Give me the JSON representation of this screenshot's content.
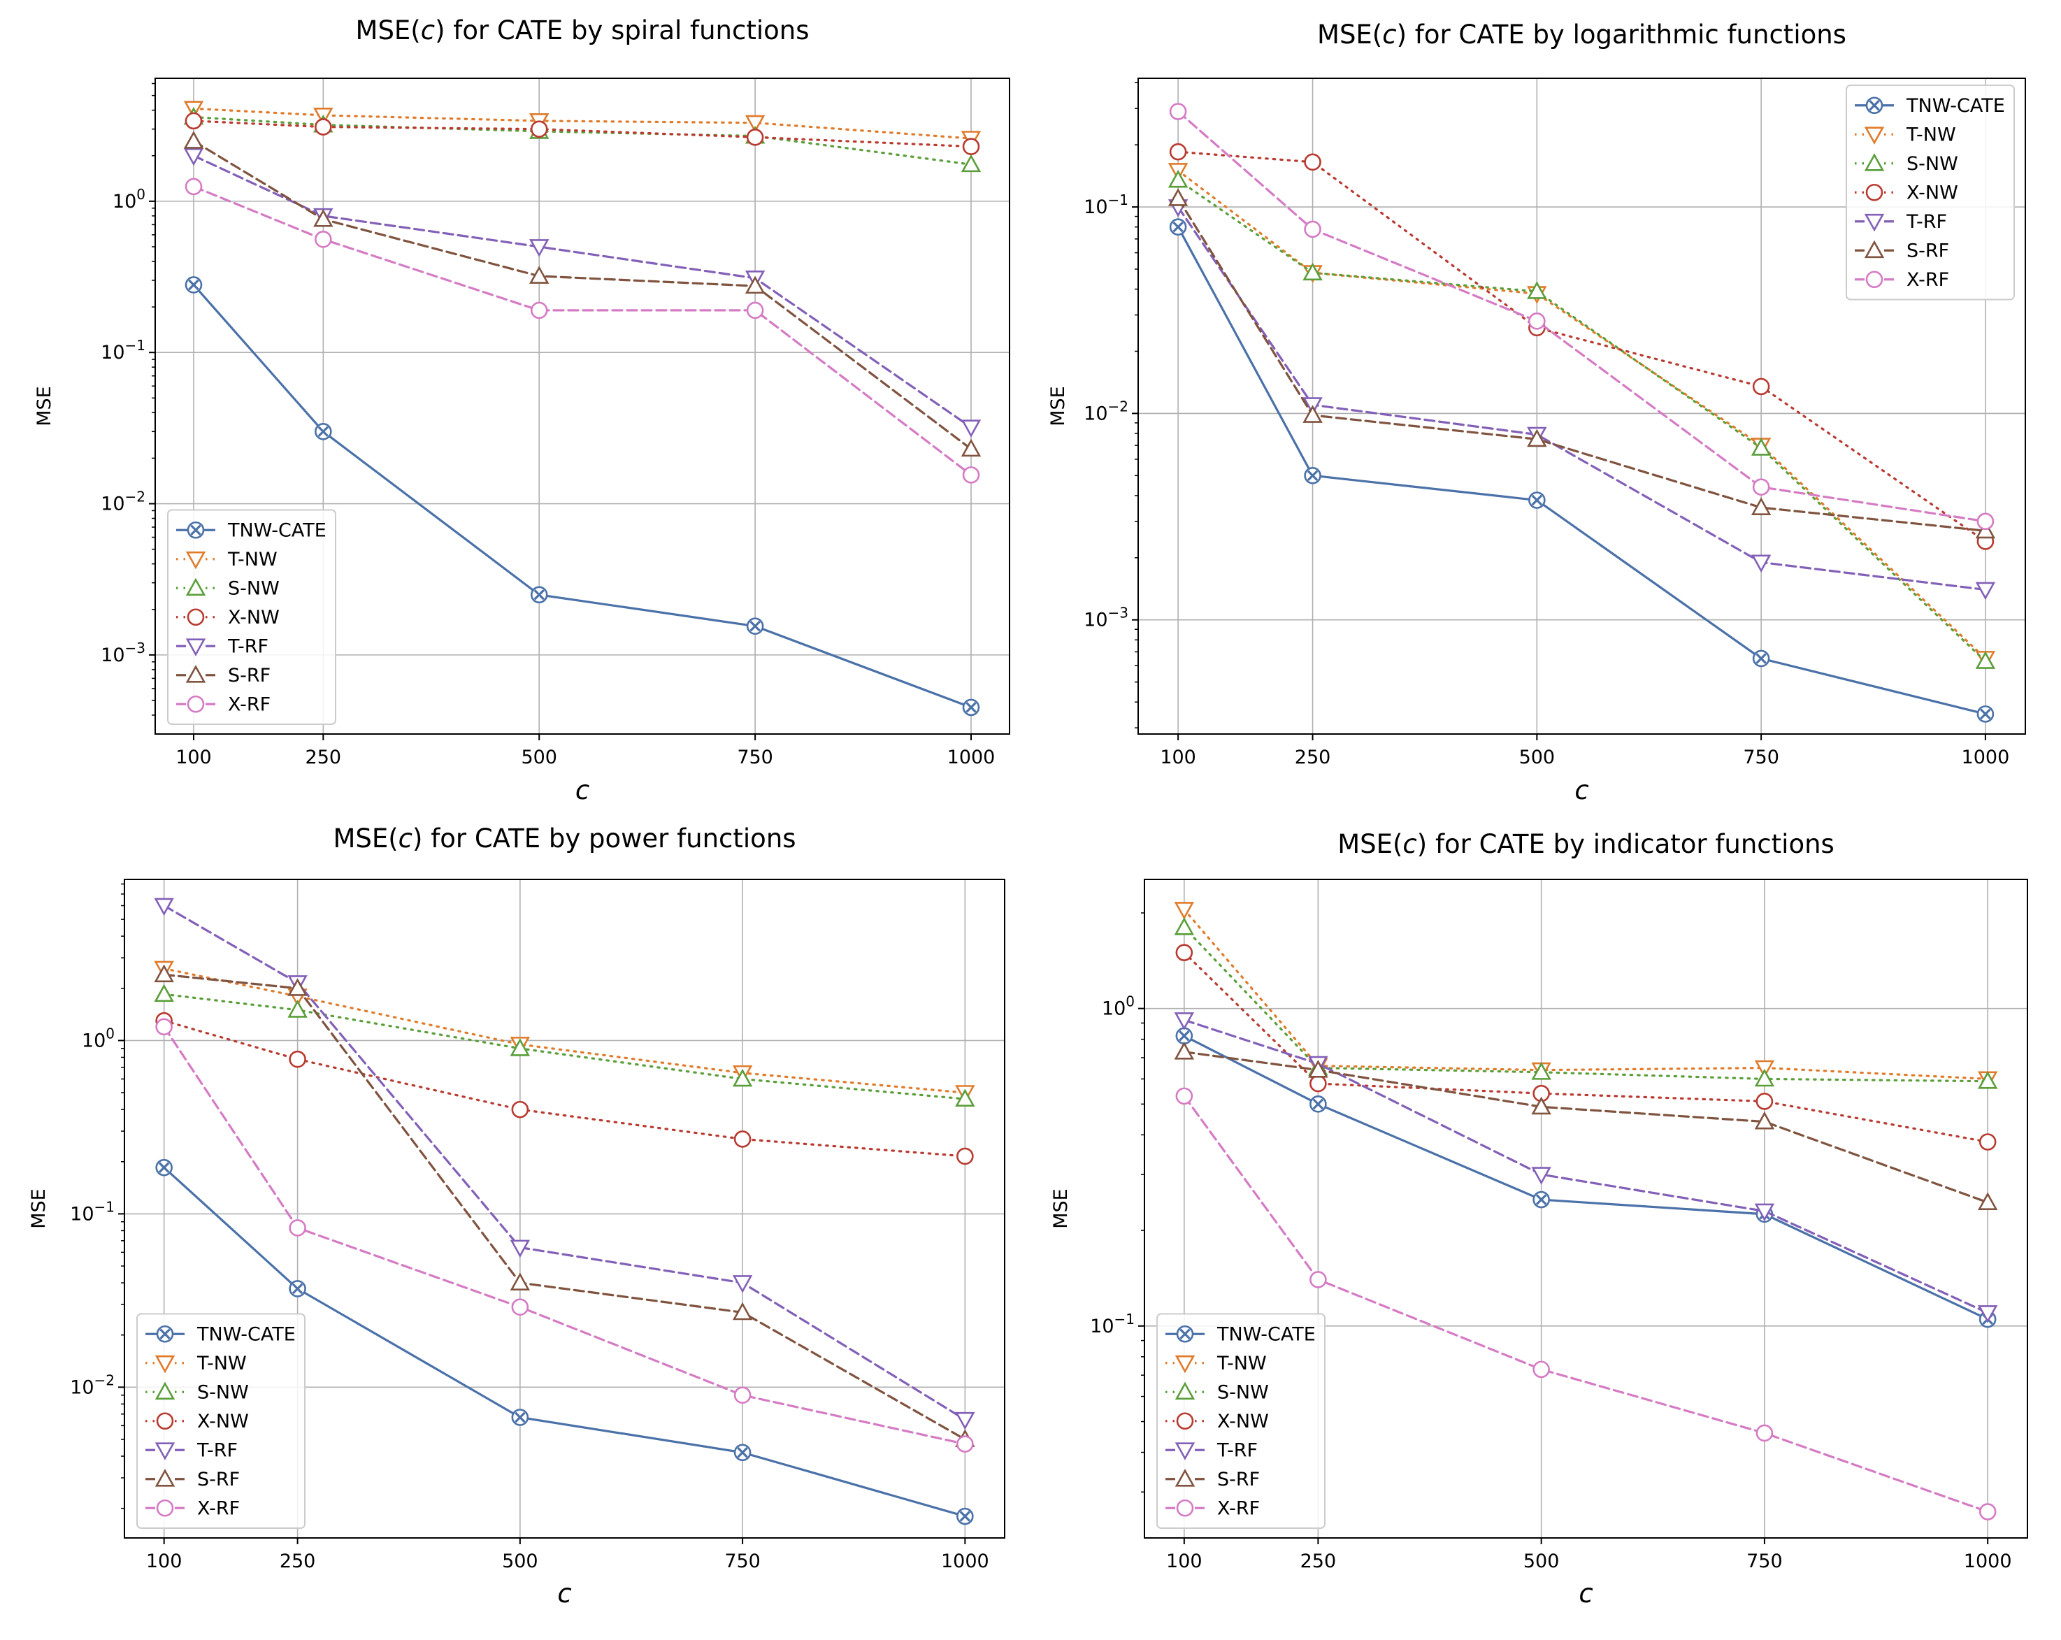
{
  "chart_data": [
    {
      "type": "line",
      "yscale": "log",
      "title_prefix": "MSE(",
      "title_var": "c",
      "title_suffix": ") for CATE by spiral functions",
      "xlabel": "c",
      "ylabel": "MSE",
      "x": [
        100,
        250,
        500,
        750,
        1000
      ],
      "xticks": [
        "100",
        "250",
        "500",
        "750",
        "1000"
      ],
      "ylim": [
        0.0003,
        6.5
      ],
      "yticks": [
        {
          "value": 0.001,
          "base": "10",
          "exp": "−3"
        },
        {
          "value": 0.01,
          "base": "10",
          "exp": "−2"
        },
        {
          "value": 0.1,
          "base": "10",
          "exp": "−1"
        },
        {
          "value": 1,
          "base": "10",
          "exp": "0"
        }
      ],
      "legend_position": "lower-left",
      "series": [
        {
          "name": "TNW-CATE",
          "values": [
            0.28,
            0.03,
            0.0025,
            0.00155,
            0.00045
          ]
        },
        {
          "name": "T-NW",
          "values": [
            4.1,
            3.7,
            3.4,
            3.3,
            2.6
          ]
        },
        {
          "name": "S-NW",
          "values": [
            3.6,
            3.2,
            2.9,
            2.7,
            1.75
          ]
        },
        {
          "name": "X-NW",
          "values": [
            3.4,
            3.1,
            3.0,
            2.65,
            2.3
          ]
        },
        {
          "name": "T-RF",
          "values": [
            2.0,
            0.8,
            0.5,
            0.31,
            0.032
          ]
        },
        {
          "name": "S-RF",
          "values": [
            2.5,
            0.76,
            0.32,
            0.275,
            0.023
          ]
        },
        {
          "name": "X-RF",
          "values": [
            1.25,
            0.56,
            0.19,
            0.19,
            0.0155
          ]
        }
      ]
    },
    {
      "type": "line",
      "yscale": "log",
      "title_prefix": "MSE(",
      "title_var": "c",
      "title_suffix": ") for CATE by logarithmic functions",
      "xlabel": "c",
      "ylabel": "MSE",
      "x": [
        100,
        250,
        500,
        750,
        1000
      ],
      "xticks": [
        "100",
        "250",
        "500",
        "750",
        "1000"
      ],
      "ylim": [
        0.00028,
        0.42
      ],
      "yticks": [
        {
          "value": 0.001,
          "base": "10",
          "exp": "−3"
        },
        {
          "value": 0.01,
          "base": "10",
          "exp": "−2"
        },
        {
          "value": 0.1,
          "base": "10",
          "exp": "−1"
        }
      ],
      "legend_position": "top-right",
      "series": [
        {
          "name": "TNW-CATE",
          "values": [
            0.08,
            0.005,
            0.0038,
            0.00065,
            0.00035
          ]
        },
        {
          "name": "T-NW",
          "values": [
            0.15,
            0.048,
            0.038,
            0.007,
            0.00065
          ]
        },
        {
          "name": "S-NW",
          "values": [
            0.135,
            0.048,
            0.039,
            0.0068,
            0.00063
          ]
        },
        {
          "name": "X-NW",
          "values": [
            0.185,
            0.165,
            0.026,
            0.0135,
            0.0024
          ]
        },
        {
          "name": "T-RF",
          "values": [
            0.1,
            0.011,
            0.0079,
            0.0019,
            0.0014
          ]
        },
        {
          "name": "S-RF",
          "values": [
            0.11,
            0.0098,
            0.0075,
            0.0035,
            0.0027
          ]
        },
        {
          "name": "X-RF",
          "values": [
            0.29,
            0.078,
            0.028,
            0.0044,
            0.003
          ]
        }
      ]
    },
    {
      "type": "line",
      "yscale": "log",
      "title_prefix": "MSE(",
      "title_var": "c",
      "title_suffix": ") for CATE by power functions",
      "xlabel": "c",
      "ylabel": "MSE",
      "x": [
        100,
        250,
        500,
        750,
        1000
      ],
      "xticks": [
        "100",
        "250",
        "500",
        "750",
        "1000"
      ],
      "ylim": [
        0.00135,
        8.5
      ],
      "yticks": [
        {
          "value": 0.01,
          "base": "10",
          "exp": "−2"
        },
        {
          "value": 0.1,
          "base": "10",
          "exp": "−1"
        },
        {
          "value": 1,
          "base": "10",
          "exp": "0"
        }
      ],
      "legend_position": "lower-left",
      "series": [
        {
          "name": "TNW-CATE",
          "values": [
            0.185,
            0.037,
            0.0067,
            0.0042,
            0.0018
          ]
        },
        {
          "name": "T-NW",
          "values": [
            2.6,
            1.8,
            0.95,
            0.65,
            0.5
          ]
        },
        {
          "name": "S-NW",
          "values": [
            1.85,
            1.5,
            0.9,
            0.6,
            0.46
          ]
        },
        {
          "name": "X-NW",
          "values": [
            1.3,
            0.78,
            0.4,
            0.27,
            0.215
          ]
        },
        {
          "name": "T-RF",
          "values": [
            6.0,
            2.15,
            0.064,
            0.04,
            0.0065
          ]
        },
        {
          "name": "S-RF",
          "values": [
            2.4,
            2.0,
            0.04,
            0.027,
            0.005
          ]
        },
        {
          "name": "X-RF",
          "values": [
            1.2,
            0.083,
            0.029,
            0.009,
            0.0047
          ]
        }
      ]
    },
    {
      "type": "line",
      "yscale": "log",
      "title_prefix": "MSE(",
      "title_var": "c",
      "title_suffix": ") for CATE by indicator functions",
      "xlabel": "c",
      "ylabel": "MSE",
      "x": [
        100,
        250,
        500,
        750,
        1000
      ],
      "xticks": [
        "100",
        "250",
        "500",
        "750",
        "1000"
      ],
      "ylim": [
        0.0215,
        2.55
      ],
      "yticks": [
        {
          "value": 0.1,
          "base": "10",
          "exp": "−1"
        },
        {
          "value": 1,
          "base": "10",
          "exp": "0"
        }
      ],
      "legend_position": "lower-left",
      "series": [
        {
          "name": "TNW-CATE",
          "values": [
            0.82,
            0.5,
            0.25,
            0.225,
            0.105
          ]
        },
        {
          "name": "T-NW",
          "values": [
            2.05,
            0.66,
            0.64,
            0.65,
            0.6
          ]
        },
        {
          "name": "S-NW",
          "values": [
            1.8,
            0.65,
            0.63,
            0.6,
            0.59
          ]
        },
        {
          "name": "X-NW",
          "values": [
            1.5,
            0.58,
            0.54,
            0.51,
            0.38
          ]
        },
        {
          "name": "T-RF",
          "values": [
            0.92,
            0.67,
            0.3,
            0.23,
            0.11
          ]
        },
        {
          "name": "S-RF",
          "values": [
            0.73,
            0.64,
            0.49,
            0.44,
            0.245
          ]
        },
        {
          "name": "X-RF",
          "values": [
            0.53,
            0.14,
            0.073,
            0.046,
            0.026
          ]
        }
      ]
    }
  ],
  "style": {
    "series_colors": {
      "TNW-CATE": "#4a71a8",
      "T-NW": "#e07b2b",
      "S-NW": "#5a9e3a",
      "X-NW": "#b83a30",
      "T-RF": "#8360b8",
      "S-RF": "#80533f",
      "X-RF": "#d57bc4"
    },
    "series_markers": {
      "TNW-CATE": "x-circle-marker",
      "T-NW": "triangle-down-marker",
      "S-NW": "triangle-up-marker",
      "X-NW": "circle-marker",
      "T-RF": "triangle-down-marker",
      "S-RF": "triangle-up-marker",
      "X-RF": "circle-marker"
    },
    "series_linestyles": {
      "TNW-CATE": "solid",
      "T-NW": "dotted",
      "S-NW": "dotted",
      "X-NW": "dotted",
      "T-RF": "dashed",
      "S-RF": "dashed",
      "X-RF": "dashed"
    }
  }
}
